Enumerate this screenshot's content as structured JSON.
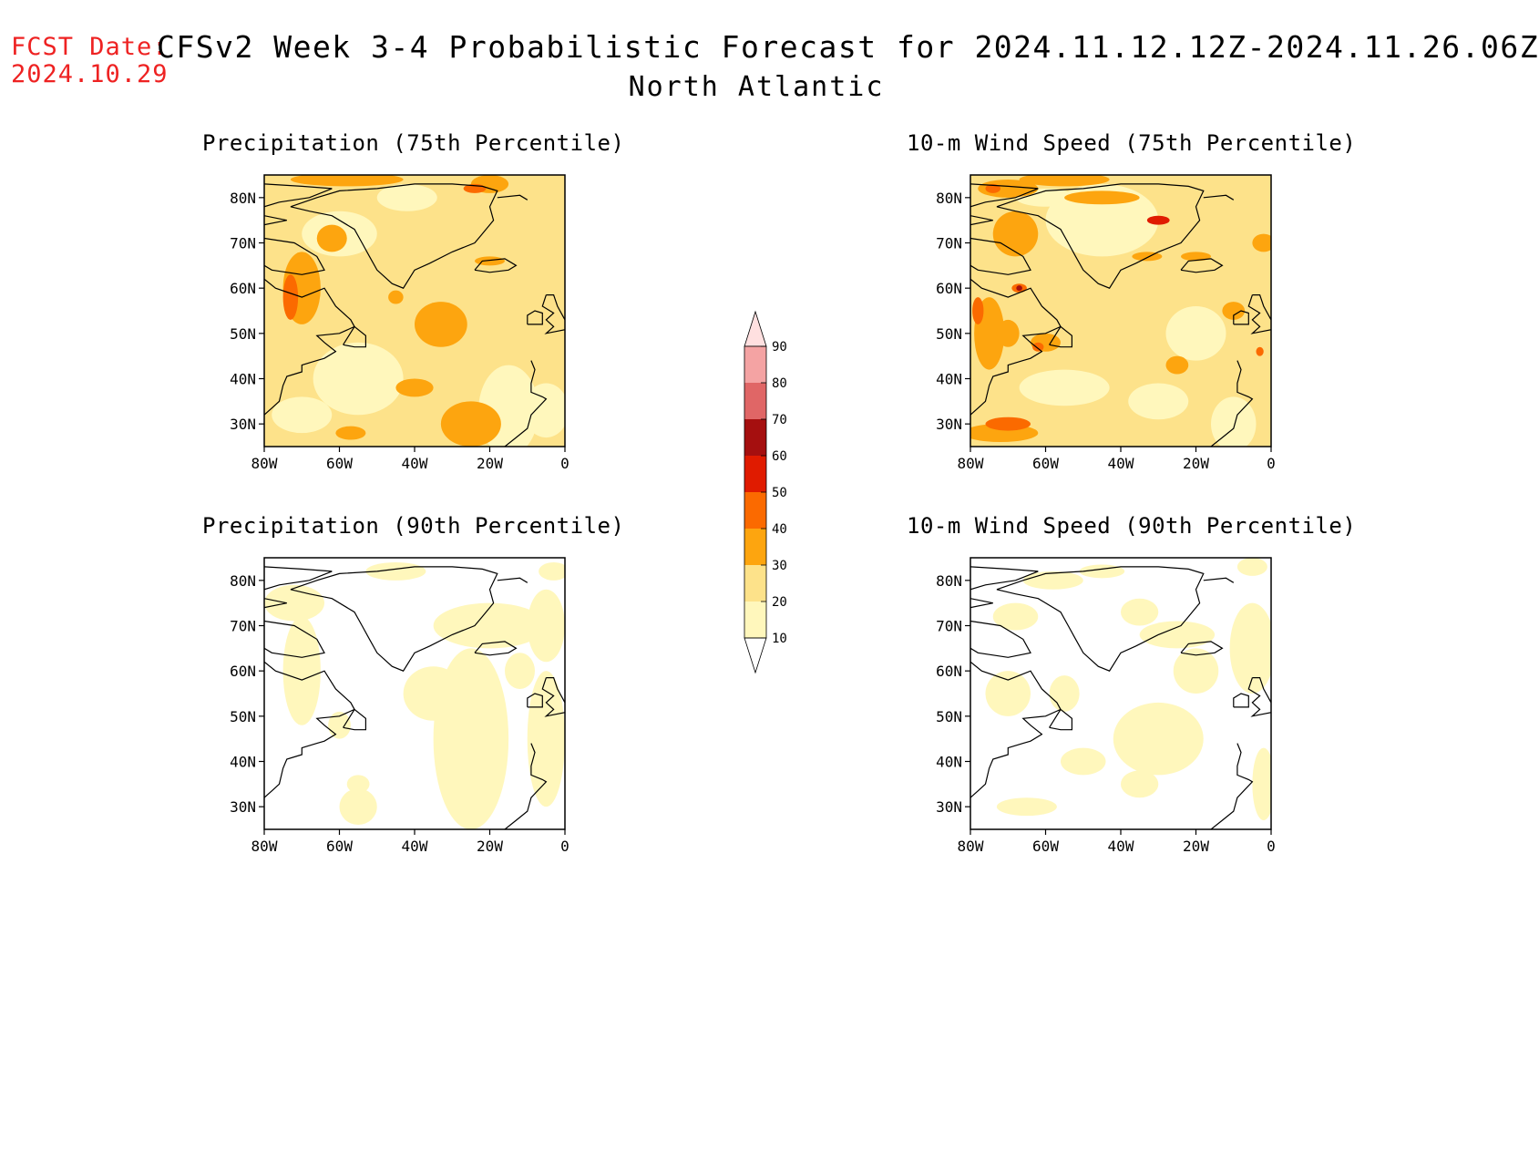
{
  "header": {
    "fcst_label": "FCST Date:",
    "fcst_date": "2024.10.29",
    "title": "CFSv2 Week 3-4 Probabilistic Forecast for 2024.11.12.12Z-2024.11.26.06Z",
    "region": "North Atlantic"
  },
  "axes": {
    "lat_labels": [
      "80N",
      "70N",
      "60N",
      "50N",
      "40N",
      "30N"
    ],
    "lon_labels": [
      "80W",
      "60W",
      "40W",
      "20W",
      "0"
    ]
  },
  "panels": [
    {
      "title": "Precipitation (75th Percentile)",
      "base_color": "#fde28a"
    },
    {
      "title": "10-m Wind Speed (75th Percentile)",
      "base_color": "#fde28a"
    },
    {
      "title": "Precipitation (90th Percentile)",
      "base_color": "#ffffff"
    },
    {
      "title": "10-m Wind Speed (90th Percentile)",
      "base_color": "#ffffff"
    }
  ],
  "colorbar": {
    "levels": [
      "10",
      "20",
      "30",
      "40",
      "50",
      "60",
      "70",
      "80",
      "90"
    ],
    "colors": [
      "#fff7bc",
      "#fde28a",
      "#fda50f",
      "#fb6a00",
      "#e01b00",
      "#a50f0f",
      "#e06666",
      "#f4a3a3",
      "#ffe0e0"
    ]
  }
}
